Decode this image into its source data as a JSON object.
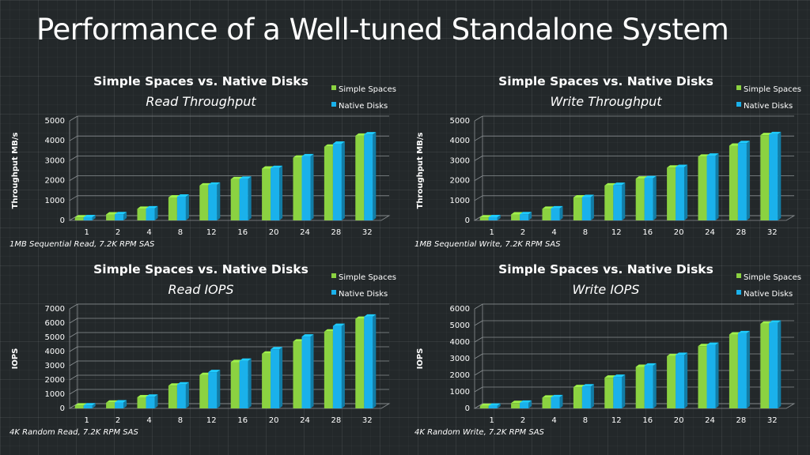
{
  "slide": {
    "title": "Performance of a Well-tuned Standalone System"
  },
  "colors": {
    "simple_spaces": "#8bd241",
    "native_disks": "#1ab1eb",
    "background": "#23282a",
    "text": "#ffffff"
  },
  "legend": {
    "simple_spaces": "Simple Spaces",
    "native_disks": "Native Disks"
  },
  "chart_data": [
    {
      "type": "bar",
      "title": "Simple Spaces vs. Native Disks",
      "subtitle": "Read Throughput",
      "ylabel": "Throughput MB/s",
      "note": "1MB Sequential Read, 7.2K RPM SAS",
      "categories": [
        "1",
        "2",
        "4",
        "8",
        "12",
        "16",
        "20",
        "24",
        "28",
        "32"
      ],
      "ylim": [
        0,
        5000
      ],
      "yticks": [
        0,
        1000,
        2000,
        3000,
        4000,
        5000
      ],
      "series": [
        {
          "name": "Simple Spaces",
          "values": [
            150,
            300,
            580,
            1150,
            1750,
            2070,
            2600,
            3150,
            3700,
            4250
          ]
        },
        {
          "name": "Native Disks",
          "values": [
            160,
            310,
            600,
            1190,
            1790,
            2090,
            2630,
            3220,
            3850,
            4320
          ]
        }
      ]
    },
    {
      "type": "bar",
      "title": "Simple Spaces vs. Native Disks",
      "subtitle": "Write Throughput",
      "ylabel": "Throughput MB/s",
      "note": "1MB Sequential Write, 7.2K RPM SAS",
      "categories": [
        "1",
        "2",
        "4",
        "8",
        "12",
        "16",
        "20",
        "24",
        "28",
        "32"
      ],
      "ylim": [
        0,
        5000
      ],
      "yticks": [
        0,
        1000,
        2000,
        3000,
        4000,
        5000
      ],
      "series": [
        {
          "name": "Simple Spaces",
          "values": [
            150,
            300,
            580,
            1150,
            1750,
            2100,
            2650,
            3200,
            3750,
            4280
          ]
        },
        {
          "name": "Native Disks",
          "values": [
            160,
            310,
            600,
            1170,
            1780,
            2120,
            2680,
            3250,
            3880,
            4330
          ]
        }
      ]
    },
    {
      "type": "bar",
      "title": "Simple Spaces vs. Native Disks",
      "subtitle": "Read IOPS",
      "ylabel": "IOPS",
      "note": "4K Random Read, 7.2K RPM SAS",
      "categories": [
        "1",
        "2",
        "4",
        "8",
        "12",
        "16",
        "20",
        "24",
        "28",
        "32"
      ],
      "ylim": [
        0,
        7000
      ],
      "yticks": [
        0,
        1000,
        2000,
        3000,
        4000,
        5000,
        6000,
        7000
      ],
      "series": [
        {
          "name": "Simple Spaces",
          "values": [
            200,
            400,
            780,
            1600,
            2350,
            3250,
            3850,
            4700,
            5400,
            6300
          ]
        },
        {
          "name": "Native Disks",
          "values": [
            210,
            420,
            820,
            1680,
            2550,
            3350,
            4150,
            5050,
            5800,
            6450
          ]
        }
      ]
    },
    {
      "type": "bar",
      "title": "Simple Spaces vs. Native Disks",
      "subtitle": "Write IOPS",
      "ylabel": "IOPS",
      "note": "4K Random Write, 7.2K RPM SAS",
      "categories": [
        "1",
        "2",
        "4",
        "8",
        "12",
        "16",
        "20",
        "24",
        "28",
        "32"
      ],
      "ylim": [
        0,
        6000
      ],
      "yticks": [
        0,
        1000,
        2000,
        3000,
        4000,
        5000,
        6000
      ],
      "series": [
        {
          "name": "Simple Spaces",
          "values": [
            150,
            320,
            650,
            1280,
            1850,
            2500,
            3150,
            3750,
            4450,
            5100
          ]
        },
        {
          "name": "Native Disks",
          "values": [
            160,
            340,
            670,
            1320,
            1900,
            2580,
            3220,
            3830,
            4530,
            5160
          ]
        }
      ]
    }
  ]
}
